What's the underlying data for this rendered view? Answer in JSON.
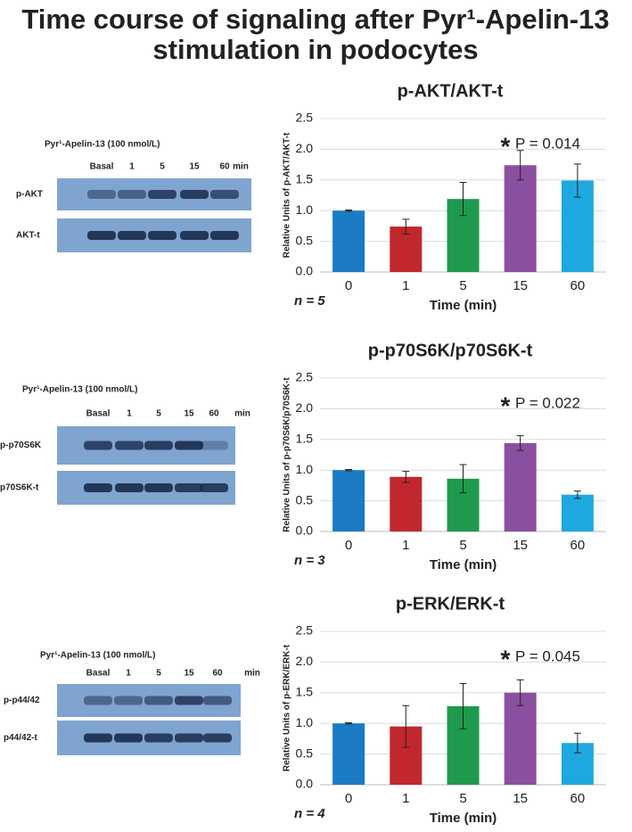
{
  "title": [
    "Time course of signaling after Pyr¹-Apelin-13",
    "stimulation in podocytes"
  ],
  "blots": [
    {
      "header": "Pyr¹-Apelin-13 (100 nmol/L)",
      "lanes": [
        "Basal",
        "1",
        "5",
        "15",
        "60",
        "min"
      ],
      "rows": [
        "p-AKT",
        "AKT-t"
      ]
    },
    {
      "header": "Pyr¹-Apelin-13 (100 nmol/L)",
      "lanes": [
        "Basal",
        "1",
        "5",
        "15",
        "60",
        "min"
      ],
      "rows": [
        "p-p70S6K",
        "p70S6K-t"
      ]
    },
    {
      "header": "Pyr¹-Apelin-13 (100 nmol/L)",
      "lanes": [
        "Basal",
        "1",
        "5",
        "15",
        "60",
        "min"
      ],
      "rows": [
        "p-p44/42",
        "p44/42-t"
      ]
    }
  ],
  "chart_data": [
    {
      "type": "bar",
      "title": "p-AKT/AKT-t",
      "ylabel": "Relative Units of p-AKT/AKT-t",
      "xlabel": "Time (min)",
      "categories": [
        "0",
        "1",
        "5",
        "15",
        "60"
      ],
      "values": [
        1.0,
        0.74,
        1.19,
        1.74,
        1.49
      ],
      "errors": [
        0.01,
        0.12,
        0.27,
        0.24,
        0.27
      ],
      "colors": [
        "#1a7bc4",
        "#c0282e",
        "#1e9a4e",
        "#8a4f9e",
        "#1ea8e0"
      ],
      "ylim": [
        0,
        2.5
      ],
      "yticks": [
        {
          "value": 0,
          "label": "0.0"
        },
        0.5,
        {
          "value": 1,
          "label": "1.0"
        },
        1.5,
        {
          "value": 2,
          "label": "2.0"
        },
        2.5
      ],
      "grid": true,
      "annotation_star": "*",
      "annotation": "P = 0.014",
      "n_label": "n = 5"
    },
    {
      "type": "bar",
      "title": "p-p70S6K/p70S6K-t",
      "ylabel": "Relative Units of p-p70S6K/p70S6K-t",
      "xlabel": "Time (min)",
      "categories": [
        "0",
        "1",
        "5",
        "15",
        "60"
      ],
      "values": [
        1.0,
        0.89,
        0.86,
        1.44,
        0.6
      ],
      "errors": [
        0.01,
        0.09,
        0.23,
        0.12,
        0.06
      ],
      "colors": [
        "#1a7bc4",
        "#c0282e",
        "#1e9a4e",
        "#8a4f9e",
        "#1ea8e0"
      ],
      "ylim": [
        0,
        2.5
      ],
      "yticks": [
        {
          "value": 0,
          "label": "0.0"
        },
        0.5,
        {
          "value": 1,
          "label": "1.0"
        },
        1.5,
        {
          "value": 2,
          "label": "2.0"
        },
        2.5
      ],
      "grid": true,
      "annotation_star": "*",
      "annotation": "P = 0.022",
      "n_label": "n = 3"
    },
    {
      "type": "bar",
      "title": "p-ERK/ERK-t",
      "ylabel": "Relative Units of p-ERK/ERK-t",
      "xlabel": "Time (min)",
      "categories": [
        "0",
        "1",
        "5",
        "15",
        "60"
      ],
      "values": [
        1.0,
        0.95,
        1.28,
        1.5,
        0.68
      ],
      "errors": [
        0.01,
        0.34,
        0.37,
        0.21,
        0.16
      ],
      "colors": [
        "#1a7bc4",
        "#c0282e",
        "#1e9a4e",
        "#8a4f9e",
        "#1ea8e0"
      ],
      "ylim": [
        0,
        2.5
      ],
      "yticks": [
        {
          "value": 0,
          "label": "0.0"
        },
        0.5,
        {
          "value": 1,
          "label": "1.0"
        },
        1.5,
        {
          "value": 2,
          "label": "2.0"
        },
        2.5
      ],
      "grid": true,
      "annotation_star": "*",
      "annotation": "P = 0.045",
      "n_label": "n = 4"
    }
  ]
}
